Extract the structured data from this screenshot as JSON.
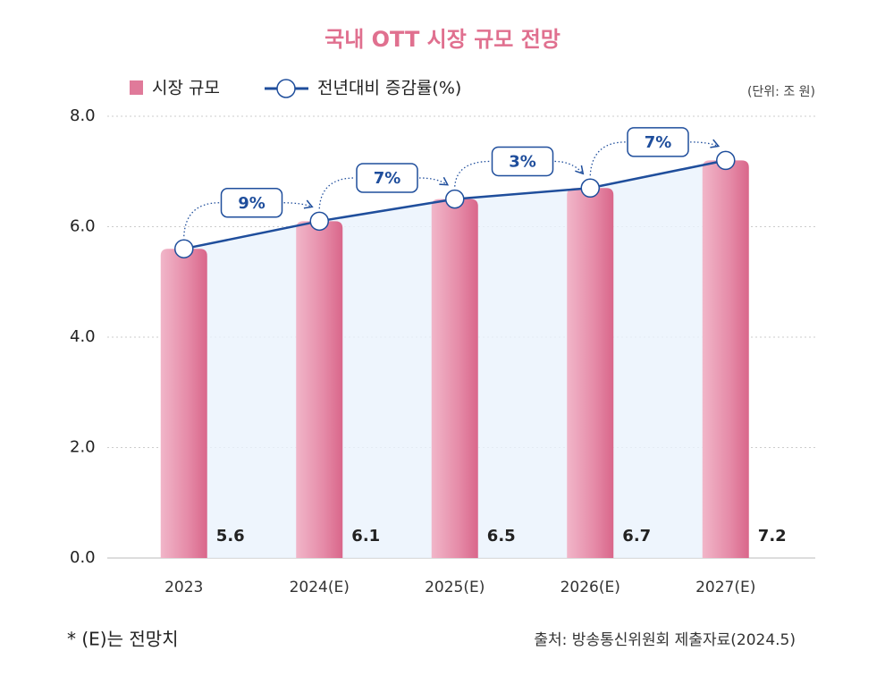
{
  "chart_data": {
    "type": "bar",
    "title": "국내 OTT 시장 규모 전망",
    "unit_note": "(단위: 조 원)",
    "categories": [
      "2023",
      "2024(E)",
      "2025(E)",
      "2026(E)",
      "2027(E)"
    ],
    "series": [
      {
        "name": "시장 규모",
        "color": "#e07a9a",
        "values": [
          5.6,
          6.1,
          6.5,
          6.7,
          7.2
        ]
      },
      {
        "name": "전년대비 증감률(%)",
        "type": "line",
        "color": "#1f4e9c",
        "values": [
          null,
          9,
          7,
          3,
          7
        ],
        "value_labels": [
          null,
          "9%",
          "7%",
          "3%",
          "7%"
        ]
      }
    ],
    "ylim": [
      0,
      8
    ],
    "yticks": [
      {
        "value": 0,
        "label": "0.0"
      },
      {
        "value": 2,
        "label": "2.0"
      },
      {
        "value": 4,
        "label": "4.0"
      },
      {
        "value": 6,
        "label": "6.0"
      },
      {
        "value": 8,
        "label": "8.0"
      }
    ],
    "grid": true,
    "footnote": "* (E)는 전망치",
    "source": "출처: 방송통신위원회 제출자료(2024.5)"
  }
}
